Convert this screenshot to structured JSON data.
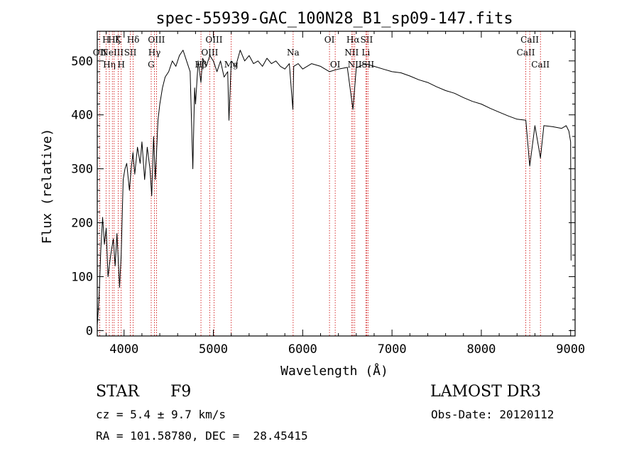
{
  "chart_data": {
    "type": "line",
    "title": "spec-55939-GAC_100N28_B1_sp09-147.fits",
    "xlabel": "Wavelength (Å)",
    "ylabel": "Flux (relative)",
    "xlim": [
      3700,
      9050
    ],
    "ylim": [
      -10,
      555
    ],
    "xticks": [
      4000,
      5000,
      6000,
      7000,
      8000,
      9000
    ],
    "yticks": [
      0,
      100,
      200,
      300,
      400,
      500
    ],
    "grid": false,
    "series": [
      {
        "name": "spectrum",
        "x": [
          3700,
          3720,
          3740,
          3760,
          3780,
          3800,
          3820,
          3850,
          3880,
          3900,
          3920,
          3935,
          3950,
          3968,
          3990,
          4010,
          4030,
          4060,
          4080,
          4100,
          4120,
          4150,
          4180,
          4200,
          4230,
          4260,
          4290,
          4310,
          4330,
          4350,
          4380,
          4400,
          4430,
          4460,
          4500,
          4540,
          4580,
          4620,
          4660,
          4700,
          4740,
          4770,
          4790,
          4800,
          4830,
          4861,
          4880,
          4920,
          4960,
          5000,
          5040,
          5080,
          5120,
          5160,
          5175,
          5200,
          5250,
          5300,
          5350,
          5400,
          5450,
          5500,
          5550,
          5600,
          5650,
          5700,
          5750,
          5800,
          5850,
          5890,
          5900,
          5950,
          6000,
          6100,
          6200,
          6300,
          6400,
          6500,
          6563,
          6600,
          6700,
          6800,
          6900,
          7000,
          7100,
          7200,
          7300,
          7400,
          7500,
          7600,
          7700,
          7800,
          7900,
          8000,
          8100,
          8200,
          8300,
          8400,
          8498,
          8542,
          8600,
          8662,
          8700,
          8800,
          8900,
          8950,
          8980,
          9000,
          9005
        ],
        "y": [
          10,
          60,
          150,
          210,
          160,
          190,
          100,
          140,
          170,
          120,
          180,
          130,
          80,
          140,
          280,
          300,
          310,
          260,
          300,
          330,
          290,
          340,
          310,
          350,
          280,
          340,
          300,
          250,
          360,
          280,
          390,
          420,
          450,
          470,
          480,
          500,
          490,
          510,
          520,
          500,
          480,
          300,
          450,
          420,
          500,
          460,
          505,
          490,
          510,
          500,
          480,
          500,
          470,
          480,
          390,
          500,
          490,
          520,
          500,
          510,
          495,
          500,
          490,
          505,
          495,
          500,
          490,
          485,
          495,
          410,
          490,
          495,
          485,
          495,
          490,
          480,
          485,
          488,
          410,
          487,
          495,
          490,
          485,
          480,
          478,
          472,
          465,
          460,
          452,
          445,
          440,
          432,
          425,
          420,
          412,
          405,
          398,
          392,
          390,
          305,
          380,
          320,
          380,
          378,
          375,
          380,
          370,
          350,
          130
        ]
      }
    ],
    "spectral_lines": [
      {
        "wavelength": 3727,
        "label": "OII",
        "row": 2
      },
      {
        "wavelength": 3798,
        "label": "H",
        "row": 1
      },
      {
        "wavelength": 3835,
        "label": "Hη",
        "row": 3
      },
      {
        "wavelength": 3869,
        "label": "NeIII",
        "row": 2
      },
      {
        "wavelength": 3889,
        "label": "Hζ",
        "row": 1
      },
      {
        "wavelength": 3934,
        "label": "K",
        "row": 1
      },
      {
        "wavelength": 3968,
        "label": "H",
        "row": 3
      },
      {
        "wavelength": 4070,
        "label": "SII",
        "row": 2
      },
      {
        "wavelength": 4102,
        "label": "Hδ",
        "row": 1
      },
      {
        "wavelength": 4304,
        "label": "G",
        "row": 3
      },
      {
        "wavelength": 4340,
        "label": "Hγ",
        "row": 2
      },
      {
        "wavelength": 4363,
        "label": "OIII",
        "row": 1
      },
      {
        "wavelength": 4861,
        "label": "Hβ",
        "row": 3
      },
      {
        "wavelength": 4959,
        "label": "OIII",
        "row": 2
      },
      {
        "wavelength": 5007,
        "label": "OIII",
        "row": 1
      },
      {
        "wavelength": 5200,
        "label": "Mg",
        "row": 3
      },
      {
        "wavelength": 5893,
        "label": "Na",
        "row": 2
      },
      {
        "wavelength": 6300,
        "label": "OI",
        "row": 1
      },
      {
        "wavelength": 6364,
        "label": "OI",
        "row": 3
      },
      {
        "wavelength": 6548,
        "label": "NII",
        "row": 2
      },
      {
        "wavelength": 6563,
        "label": "Hα",
        "row": 1
      },
      {
        "wavelength": 6583,
        "label": "NII",
        "row": 3
      },
      {
        "wavelength": 6707,
        "label": "Li",
        "row": 2
      },
      {
        "wavelength": 6716,
        "label": "SII",
        "row": 1
      },
      {
        "wavelength": 6731,
        "label": "SII",
        "row": 3
      },
      {
        "wavelength": 8498,
        "label": "CaII",
        "row": 2
      },
      {
        "wavelength": 8542,
        "label": "CaII",
        "row": 1
      },
      {
        "wavelength": 8662,
        "label": "CaII",
        "row": 3
      }
    ],
    "colors": {
      "spectrum": "#000000",
      "lines": "#cc0000",
      "axes": "#000000"
    }
  },
  "info": {
    "object_class": "STAR",
    "subclass": "F9",
    "survey": "LAMOST DR3",
    "velocity": "cz = 5.4 ± 9.7 km/s",
    "obs_date": "Obs-Date: 20120112",
    "coords": "RA = 101.58780, DEC =  28.45415"
  }
}
